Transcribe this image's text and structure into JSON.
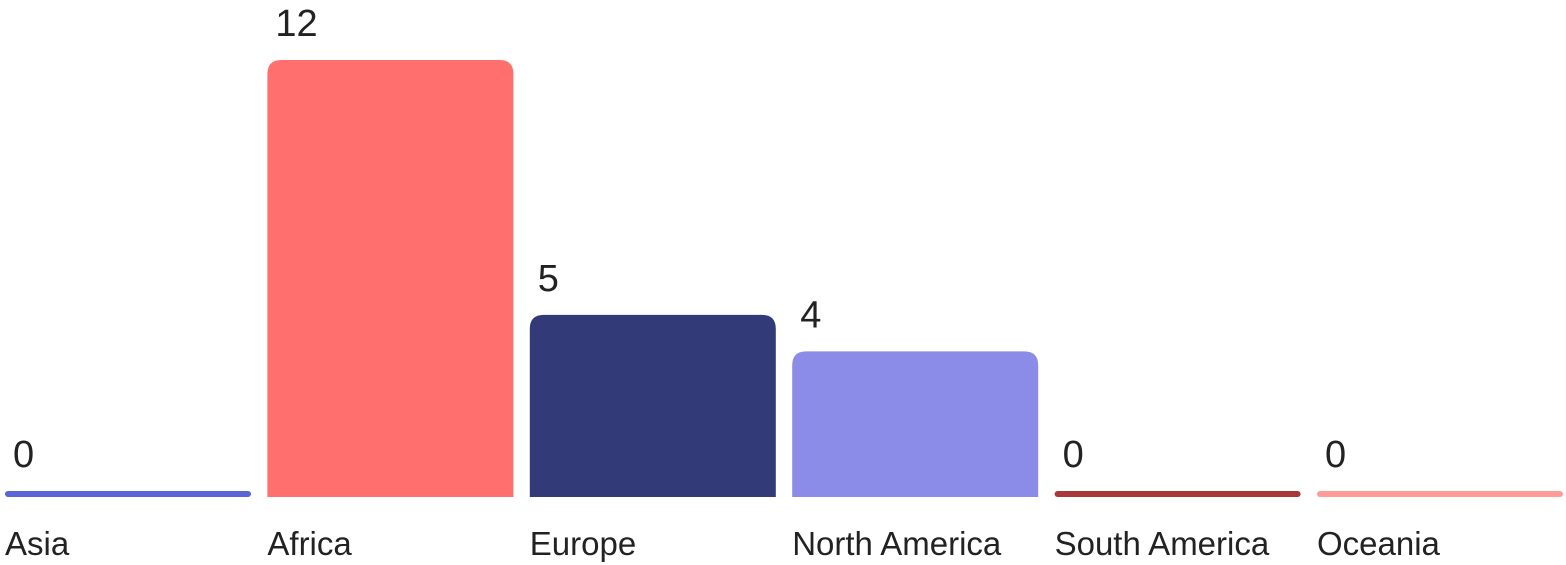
{
  "chart_data": {
    "type": "bar",
    "title": "",
    "xlabel": "",
    "ylabel": "",
    "categories": [
      "Asia",
      "Africa",
      "Europe",
      "North America",
      "South America",
      "Oceania"
    ],
    "values": [
      0,
      12,
      5,
      4,
      0,
      0
    ],
    "value_labels": [
      "0",
      "12",
      "5",
      "4",
      "0",
      "0"
    ],
    "colors": [
      "#5b64d6",
      "#ff6f6d",
      "#323a78",
      "#8b8ce8",
      "#a8393b",
      "#ff9c9a"
    ],
    "ylim": [
      0,
      12
    ],
    "grid": false,
    "legend": "none"
  }
}
